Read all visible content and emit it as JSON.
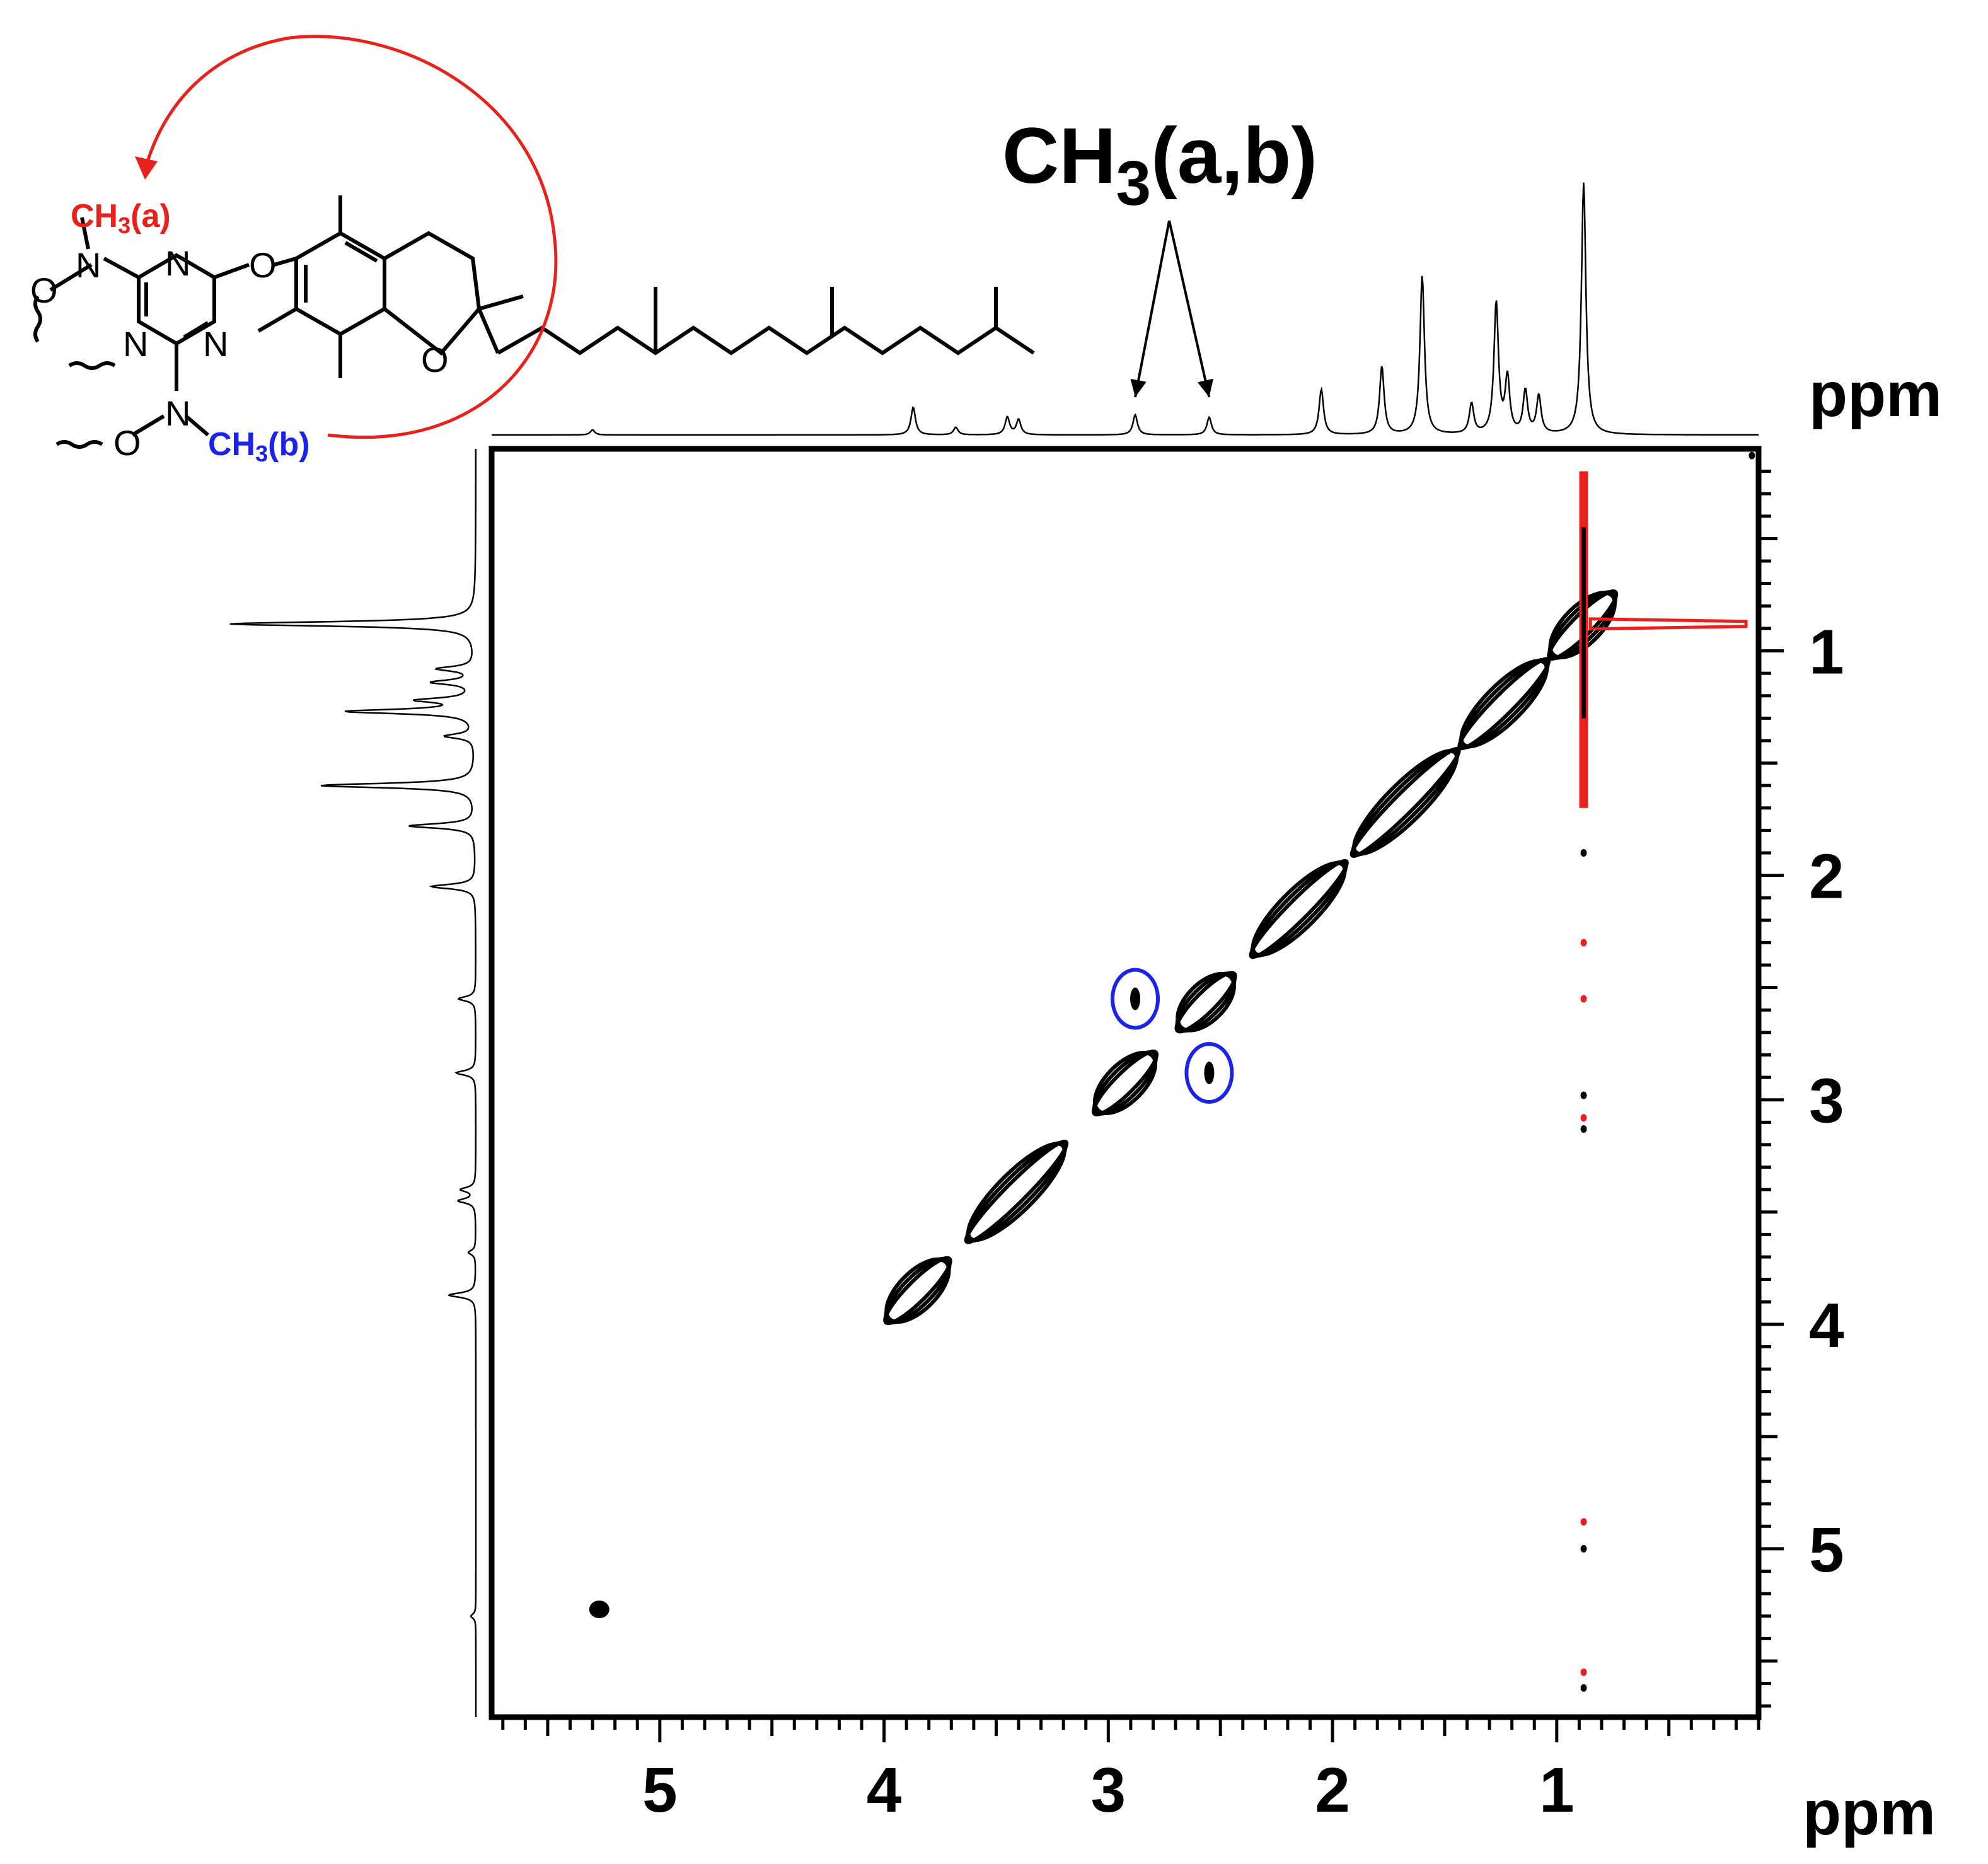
{
  "chart_data": {
    "type": "2D NMR contour (NOESY)",
    "annotation": {
      "label_main": "CH",
      "label_sub": "3",
      "label_tail": "(a,b)"
    },
    "molecule_labels": {
      "ch3_a": "CH",
      "ch3_a_sub": "3",
      "ch3_a_tail": "(a)",
      "ch3_b": "CH",
      "ch3_b_sub": "3",
      "ch3_b_tail": "(b)",
      "atom_N": "N",
      "atom_O": "O"
    },
    "x_axis": {
      "unit": "ppm",
      "range": [
        5.75,
        0.1
      ],
      "ticks": [
        5,
        4,
        3,
        2,
        1
      ]
    },
    "y_axis": {
      "unit": "ppm",
      "range": [
        0.1,
        5.75
      ],
      "ticks": [
        1,
        2,
        3,
        4,
        5
      ]
    },
    "projection_peaks": [
      {
        "ppm": 0.88,
        "height": 1.0
      },
      {
        "ppm": 1.27,
        "height": 0.52
      },
      {
        "ppm": 1.6,
        "height": 0.63
      },
      {
        "ppm": 1.78,
        "height": 0.27
      },
      {
        "ppm": 2.05,
        "height": 0.18
      },
      {
        "ppm": 1.38,
        "height": 0.12
      },
      {
        "ppm": 1.14,
        "height": 0.17
      },
      {
        "ppm": 1.08,
        "height": 0.15
      },
      {
        "ppm": 1.22,
        "height": 0.22
      },
      {
        "ppm": 2.55,
        "height": 0.07
      },
      {
        "ppm": 2.88,
        "height": 0.08
      },
      {
        "ppm": 3.4,
        "height": 0.06
      },
      {
        "ppm": 3.45,
        "height": 0.07
      },
      {
        "ppm": 3.68,
        "height": 0.03
      },
      {
        "ppm": 3.87,
        "height": 0.11
      },
      {
        "ppm": 5.3,
        "height": 0.02
      }
    ],
    "diagonal_segments": [
      [
        3.98,
        3.72
      ],
      [
        3.62,
        3.2
      ],
      [
        3.05,
        2.8
      ],
      [
        2.68,
        2.45
      ],
      [
        2.35,
        1.95
      ],
      [
        1.9,
        1.45
      ],
      [
        1.42,
        1.05
      ],
      [
        1.02,
        0.75
      ]
    ],
    "cross_peaks_highlighted": [
      {
        "x": 2.88,
        "y": 2.55
      },
      {
        "x": 2.55,
        "y": 2.88
      }
    ],
    "isolated_peaks": [
      {
        "x": 5.27,
        "y": 5.27,
        "color": "black"
      },
      {
        "x": 0.88,
        "y": 1.9,
        "color": "black"
      },
      {
        "x": 0.88,
        "y": 2.98,
        "color": "black"
      },
      {
        "x": 0.88,
        "y": 3.13,
        "color": "black"
      },
      {
        "x": 0.88,
        "y": 5.0,
        "color": "black"
      },
      {
        "x": 0.88,
        "y": 5.62,
        "color": "black"
      },
      {
        "x": 0.88,
        "y": 2.3,
        "color": "red"
      },
      {
        "x": 0.88,
        "y": 2.55,
        "color": "red"
      },
      {
        "x": 0.88,
        "y": 3.08,
        "color": "red"
      },
      {
        "x": 0.88,
        "y": 4.88,
        "color": "red"
      },
      {
        "x": 0.88,
        "y": 5.55,
        "color": "red"
      },
      {
        "x": 0.13,
        "y": 0.13,
        "color": "black"
      }
    ]
  }
}
